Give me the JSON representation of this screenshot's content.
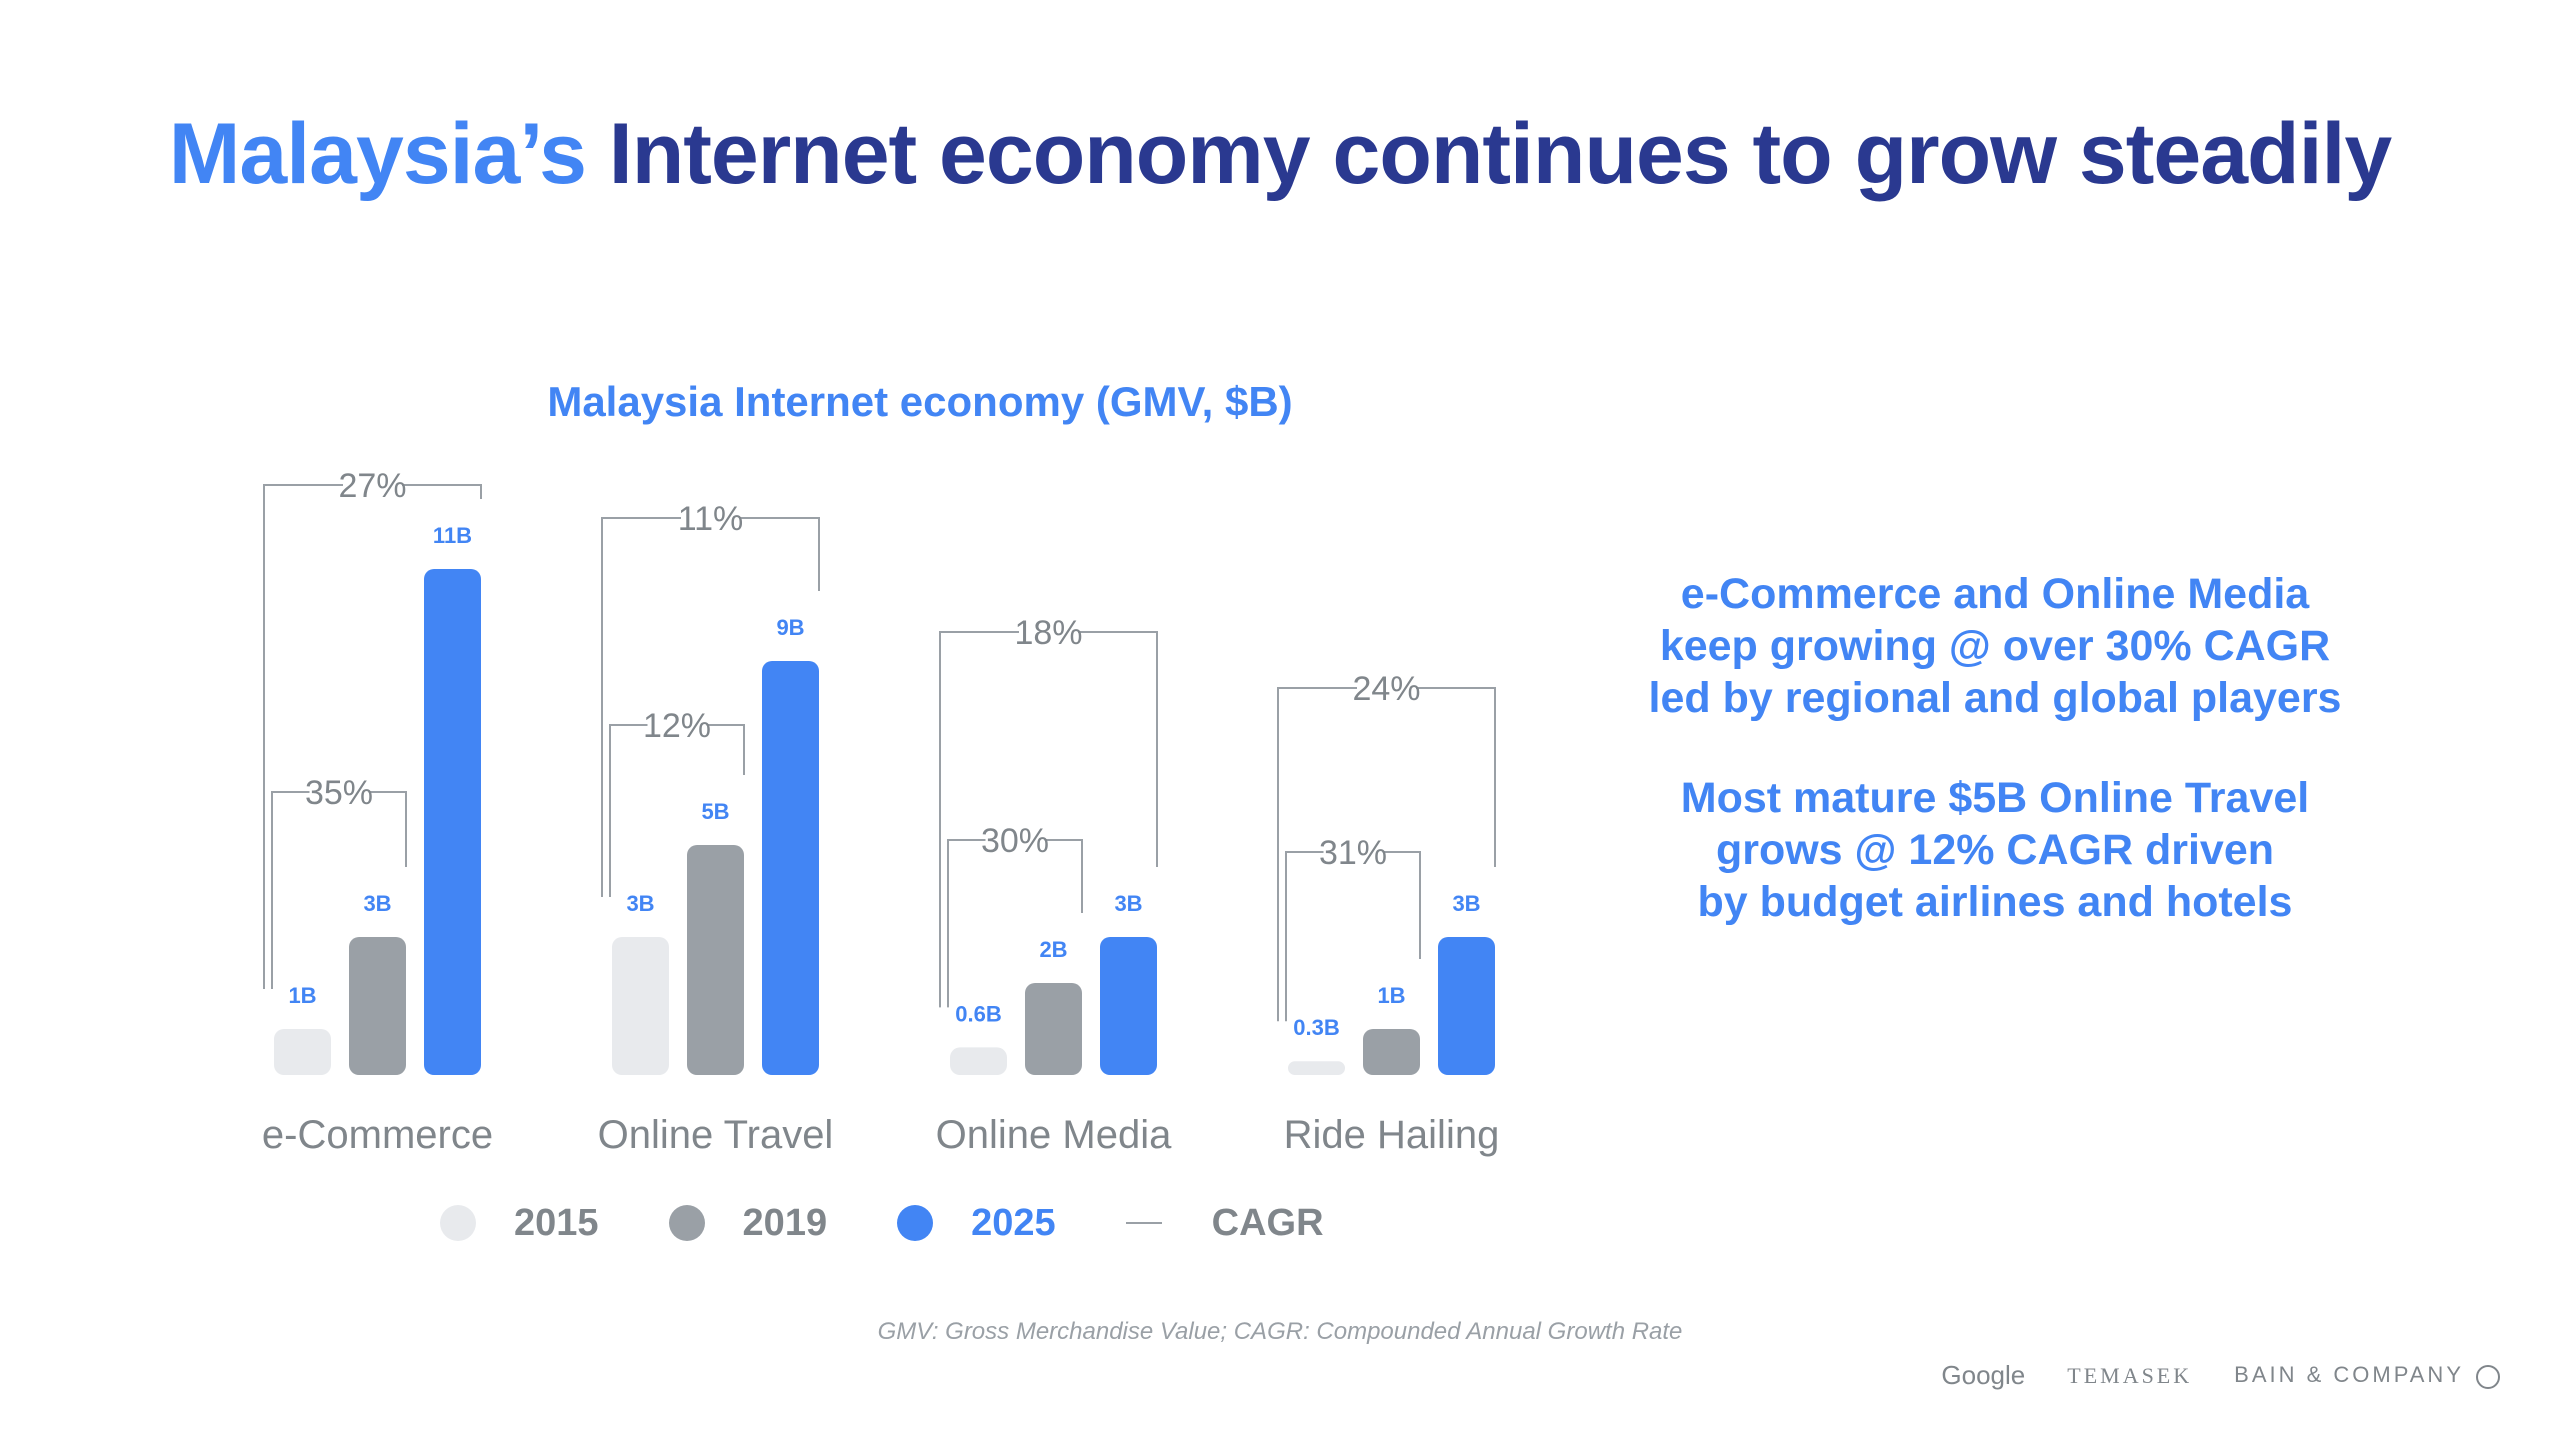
{
  "header": {
    "title_highlight": "Malaysia’s",
    "title_rest": " Internet economy continues to grow steadily"
  },
  "colors": {
    "c2015": "#e8eaed",
    "c2019": "#9aa0a6",
    "c2025": "#4285f4",
    "label": "#4285f4",
    "cagr": "#80868b"
  },
  "chart_data": {
    "type": "bar",
    "title": "Malaysia Internet economy (GMV, $B)",
    "categories": [
      "e-Commerce",
      "Online Travel",
      "Online Media",
      "Ride Hailing"
    ],
    "series": [
      {
        "name": "2015",
        "values": [
          1,
          3,
          0.6,
          0.3
        ],
        "labels": [
          "1B",
          "3B",
          "0.6B",
          "0.3B"
        ]
      },
      {
        "name": "2019",
        "values": [
          3,
          5,
          2,
          1
        ],
        "labels": [
          "3B",
          "5B",
          "2B",
          "1B"
        ]
      },
      {
        "name": "2025",
        "values": [
          11,
          9,
          3,
          3
        ],
        "labels": [
          "11B",
          "9B",
          "3B",
          "3B"
        ]
      }
    ],
    "cagr_2015_2019": [
      "35%",
      "12%",
      "30%",
      "31%"
    ],
    "cagr_2015_2025": [
      "27%",
      "11%",
      "18%",
      "24%"
    ],
    "legend": [
      "2015",
      "2019",
      "2025",
      "CAGR"
    ],
    "xlabel": "",
    "ylabel": "GMV ($B)"
  },
  "side_text": {
    "block1": [
      "e-Commerce and Online Media",
      "keep growing @ over 30% CAGR",
      "led by regional and global players"
    ],
    "block2": [
      "Most mature $5B Online Travel",
      "grows @ 12% CAGR driven",
      "by budget airlines and hotels"
    ]
  },
  "footnote": "GMV: Gross Merchandise Value; CAGR: Compounded Annual Growth Rate",
  "logos": {
    "google": "Google",
    "temasek": "TEMASEK",
    "bain": "BAIN & COMPANY"
  }
}
